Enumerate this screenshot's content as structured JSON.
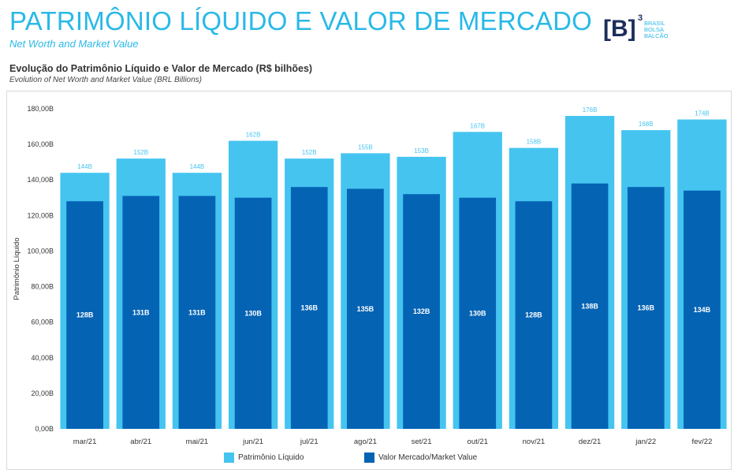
{
  "header": {
    "title": "PATRIMÔNIO LÍQUIDO E VALOR DE MERCADO",
    "subtitle": "Net Worth and Market Value"
  },
  "logo": {
    "mark": "[B]",
    "superscript": "3",
    "line1": "BRASIL",
    "line2": "BOLSA",
    "line3": "BALCÃO"
  },
  "colors": {
    "accent": "#29b9e8",
    "patrimonio": "#45c4f0",
    "valor_mercado": "#0563b4"
  },
  "chart_data": {
    "type": "bar",
    "title": "Evolução do Patrimônio Líquido e Valor de Mercado (R$ bilhões)",
    "subtitle": "Evolution of Net Worth and Market Value (BRL Billions)",
    "ylabel": "Patrimônio Líquido",
    "ylim": [
      0,
      180
    ],
    "yticks": [
      "0,00B",
      "20,00B",
      "40,00B",
      "60,00B",
      "80,00B",
      "100,00B",
      "120,00B",
      "140,00B",
      "160,00B",
      "180,00B"
    ],
    "grid": false,
    "legend_position": "bottom",
    "categories": [
      "mar/21",
      "abr/21",
      "mai/21",
      "jun/21",
      "jul/21",
      "ago/21",
      "set/21",
      "out/21",
      "nov/21",
      "dez/21",
      "jan/22",
      "fev/22"
    ],
    "series": [
      {
        "name": "Patrimônio Líquido",
        "values": [
          144,
          152,
          144,
          162,
          152,
          155,
          153,
          167,
          158,
          176,
          168,
          174
        ],
        "labels": [
          "144B",
          "152B",
          "144B",
          "162B",
          "152B",
          "155B",
          "153B",
          "167B",
          "158B",
          "176B",
          "168B",
          "174B"
        ]
      },
      {
        "name": "Valor Mercado/Market Value",
        "values": [
          128,
          131,
          131,
          130,
          136,
          135,
          132,
          130,
          128,
          138,
          136,
          134
        ],
        "labels": [
          "128B",
          "131B",
          "131B",
          "130B",
          "136B",
          "135B",
          "132B",
          "130B",
          "128B",
          "138B",
          "136B",
          "134B"
        ]
      }
    ]
  }
}
